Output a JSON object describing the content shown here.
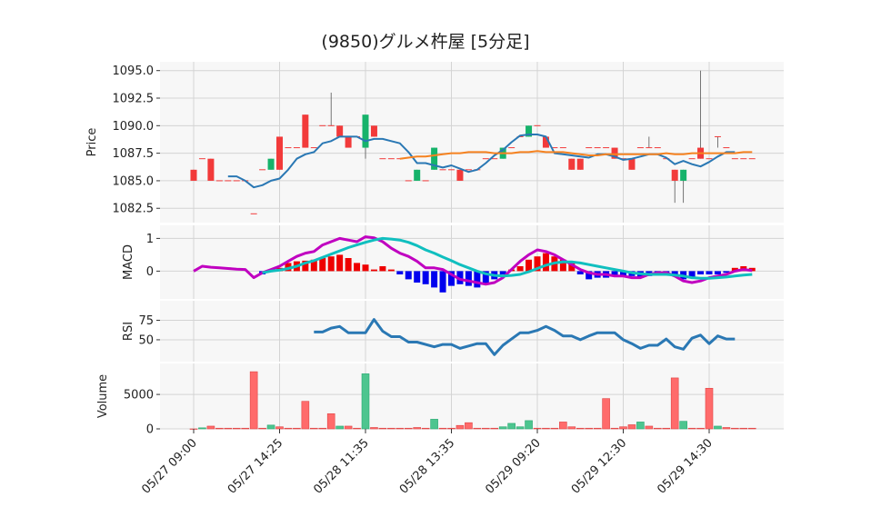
{
  "chart_data": {
    "type": "candlestick",
    "title": "(9850)グルメ杵屋 [5分足]",
    "x_labels": [
      "05/27 09:00",
      "05/27 14:25",
      "05/28 11:35",
      "05/28 13:35",
      "05/29 09:20",
      "05/29 12:30",
      "05/29 14:30"
    ],
    "x_label_index": [
      0,
      10,
      20,
      30,
      40,
      50,
      60
    ],
    "n_bars": 66,
    "colors": {
      "up": "#16b36b",
      "down": "#f23a3a",
      "ma_short": "#2a78b4",
      "ma_long": "#f58220",
      "macd": "#c000c0",
      "signal": "#10bfbf",
      "hist_up": "#ee0000",
      "hist_down": "#0000ee",
      "rsi": "#2a78b4",
      "vol_up": "#4dc58f",
      "vol_down": "#ff6b6b"
    },
    "price": {
      "ylabel": "Price",
      "ylim": [
        1081.2,
        1095.8
      ],
      "ticks": [
        "1082.5",
        "1085.0",
        "1087.5",
        "1090.0",
        "1092.5",
        "1095.0"
      ],
      "ohlc": [
        [
          1086,
          1086,
          1085,
          1085
        ],
        [
          1087,
          1087,
          1087,
          1087
        ],
        [
          1087,
          1087,
          1085,
          1085
        ],
        [
          1085,
          1085,
          1085,
          1085
        ],
        [
          1085,
          1085,
          1085,
          1085
        ],
        [
          1085,
          1085,
          1085,
          1085
        ],
        [
          1085,
          1085,
          1085,
          1085
        ],
        [
          1082,
          1082,
          1082,
          1082
        ],
        [
          1086,
          1086,
          1086,
          1086
        ],
        [
          1086,
          1087,
          1086,
          1087
        ],
        [
          1089,
          1089,
          1086,
          1086
        ],
        [
          1088,
          1088,
          1088,
          1088
        ],
        [
          1088,
          1088,
          1088,
          1088
        ],
        [
          1091,
          1091,
          1088,
          1088
        ],
        [
          1088,
          1088,
          1088,
          1088
        ],
        [
          1090,
          1090,
          1090,
          1090
        ],
        [
          1090,
          1093,
          1090,
          1090
        ],
        [
          1090,
          1090,
          1089,
          1089
        ],
        [
          1089,
          1089,
          1088,
          1088
        ],
        [
          1089,
          1089,
          1089,
          1089
        ],
        [
          1088,
          1091,
          1087,
          1091
        ],
        [
          1090,
          1090,
          1089,
          1089
        ],
        [
          1087,
          1087,
          1087,
          1087
        ],
        [
          1087,
          1087,
          1087,
          1087
        ],
        [
          1087,
          1087,
          1087,
          1087
        ],
        [
          1085,
          1085,
          1085,
          1085
        ],
        [
          1085,
          1086,
          1085,
          1086
        ],
        [
          1085,
          1085,
          1085,
          1085
        ],
        [
          1086,
          1088,
          1086,
          1088
        ],
        [
          1086,
          1086,
          1086,
          1086
        ],
        [
          1086,
          1086,
          1086,
          1086
        ],
        [
          1086,
          1086,
          1085,
          1085
        ],
        [
          1086,
          1086,
          1086,
          1086
        ],
        [
          1086,
          1086,
          1086,
          1086
        ],
        [
          1087,
          1087,
          1087,
          1087
        ],
        [
          1087,
          1087,
          1087,
          1087
        ],
        [
          1087,
          1088,
          1087,
          1088
        ],
        [
          1088,
          1088,
          1088,
          1088
        ],
        [
          1089,
          1089,
          1089,
          1089
        ],
        [
          1089,
          1090,
          1089,
          1090
        ],
        [
          1090,
          1090,
          1090,
          1090
        ],
        [
          1089,
          1089,
          1088,
          1088
        ],
        [
          1088,
          1088,
          1088,
          1088
        ],
        [
          1088,
          1088,
          1088,
          1088
        ],
        [
          1087,
          1087,
          1086,
          1086
        ],
        [
          1087,
          1087,
          1086,
          1086
        ],
        [
          1088,
          1088,
          1088,
          1088
        ],
        [
          1088,
          1088,
          1088,
          1088
        ],
        [
          1088,
          1088,
          1088,
          1088
        ],
        [
          1088,
          1088,
          1087,
          1087
        ],
        [
          1087,
          1087,
          1087,
          1087
        ],
        [
          1087,
          1087,
          1086,
          1086
        ],
        [
          1088,
          1088,
          1088,
          1088
        ],
        [
          1088,
          1089,
          1088,
          1088
        ],
        [
          1088,
          1088,
          1088,
          1088
        ],
        [
          1087,
          1087,
          1087,
          1087
        ],
        [
          1086,
          1086,
          1083,
          1085
        ],
        [
          1085,
          1086,
          1083,
          1086
        ],
        [
          1087,
          1087,
          1087,
          1087
        ],
        [
          1088,
          1095,
          1087,
          1087
        ],
        [
          1087,
          1087,
          1087,
          1087
        ],
        [
          1089,
          1089,
          1088,
          1089
        ],
        [
          1088,
          1088,
          1088,
          1088
        ],
        [
          1087,
          1087,
          1087,
          1087
        ],
        [
          1087,
          1087,
          1087,
          1087
        ],
        [
          1087,
          1087,
          1087,
          1087
        ]
      ],
      "ma_short": [
        null,
        null,
        null,
        null,
        1085.4,
        1085.4,
        1085,
        1084.4,
        1084.6,
        1085,
        1085.2,
        1086,
        1087,
        1087.4,
        1087.6,
        1088.4,
        1088.6,
        1089,
        1089,
        1089,
        1088.6,
        1088.8,
        1088.8,
        1088.6,
        1088.4,
        1087.6,
        1086.6,
        1086.6,
        1086.4,
        1086.2,
        1086.4,
        1086.1,
        1085.8,
        1086.0,
        1086.6,
        1087.3,
        1087.8,
        1088.5,
        1089.1,
        1089.2,
        1089.2,
        1089.0,
        1087.5,
        1087.4,
        1087.3,
        1087.2,
        1087.1,
        1087.4,
        1087.4,
        1087.2,
        1086.9,
        1087.0,
        1087.2,
        1087.4,
        1087.4,
        1087.1,
        1086.5,
        1086.8,
        1086.5,
        1086.3,
        1086.7,
        1087.2,
        1087.6,
        1087.6,
        null,
        null
      ],
      "ma_long": [
        null,
        null,
        null,
        null,
        null,
        null,
        null,
        null,
        null,
        null,
        null,
        null,
        null,
        null,
        null,
        null,
        null,
        null,
        null,
        null,
        null,
        null,
        null,
        null,
        1087.0,
        1087.1,
        1087.2,
        1087.2,
        1087.3,
        1087.4,
        1087.5,
        1087.5,
        1087.6,
        1087.6,
        1087.6,
        1087.5,
        1087.5,
        1087.5,
        1087.6,
        1087.6,
        1087.7,
        1087.6,
        1087.6,
        1087.6,
        1087.5,
        1087.4,
        1087.3,
        1087.3,
        1087.4,
        1087.4,
        1087.4,
        1087.4,
        1087.4,
        1087.4,
        1087.4,
        1087.5,
        1087.4,
        1087.4,
        1087.5,
        1087.5,
        1087.5,
        1087.5,
        1087.5,
        1087.5,
        1087.6,
        1087.6
      ]
    },
    "macd": {
      "ylabel": "MACD",
      "ylim": [
        -0.85,
        1.4
      ],
      "ticks": [
        "0",
        "1"
      ],
      "macd": [
        0,
        0.15,
        0.12,
        0.1,
        0.08,
        0.06,
        0.05,
        -0.2,
        -0.05,
        0.05,
        0.15,
        0.3,
        0.45,
        0.55,
        0.6,
        0.8,
        0.9,
        1.0,
        0.95,
        0.9,
        1.05,
        1.02,
        0.9,
        0.7,
        0.55,
        0.45,
        0.3,
        0.1,
        0.1,
        0.05,
        -0.1,
        -0.25,
        -0.3,
        -0.35,
        -0.4,
        -0.35,
        -0.2,
        0.05,
        0.3,
        0.5,
        0.65,
        0.6,
        0.5,
        0.35,
        0.2,
        0.05,
        -0.05,
        -0.1,
        -0.1,
        -0.15,
        -0.15,
        -0.2,
        -0.2,
        -0.1,
        -0.05,
        -0.05,
        -0.15,
        -0.3,
        -0.35,
        -0.3,
        -0.2,
        -0.15,
        -0.1,
        0,
        0.05,
        0.02
      ],
      "signal": [
        null,
        null,
        null,
        null,
        null,
        null,
        null,
        null,
        -0.05,
        0,
        0.03,
        0.08,
        0.15,
        0.25,
        0.32,
        0.42,
        0.52,
        0.62,
        0.72,
        0.8,
        0.88,
        0.95,
        1.0,
        0.98,
        0.95,
        0.88,
        0.78,
        0.65,
        0.55,
        0.43,
        0.32,
        0.2,
        0.1,
        0.0,
        -0.08,
        -0.13,
        -0.15,
        -0.13,
        -0.1,
        -0.02,
        0.08,
        0.18,
        0.25,
        0.28,
        0.28,
        0.25,
        0.2,
        0.15,
        0.1,
        0.05,
        0.0,
        -0.05,
        -0.08,
        -0.1,
        -0.1,
        -0.1,
        -0.12,
        -0.15,
        -0.2,
        -0.22,
        -0.22,
        -0.2,
        -0.18,
        -0.15,
        -0.12,
        -0.1
      ],
      "hist": [
        null,
        null,
        null,
        null,
        null,
        null,
        null,
        null,
        -0.1,
        0.02,
        0.1,
        0.25,
        0.3,
        0.32,
        0.35,
        0.4,
        0.45,
        0.5,
        0.4,
        0.25,
        0.2,
        0.05,
        0.15,
        0.05,
        -0.1,
        -0.25,
        -0.35,
        -0.4,
        -0.5,
        -0.65,
        -0.45,
        -0.4,
        -0.45,
        -0.5,
        -0.4,
        -0.25,
        -0.1,
        0.05,
        0.15,
        0.35,
        0.45,
        0.55,
        0.45,
        0.35,
        0.25,
        -0.1,
        -0.25,
        -0.2,
        -0.2,
        -0.15,
        -0.15,
        -0.15,
        -0.2,
        -0.15,
        -0.05,
        -0.05,
        -0.15,
        -0.25,
        -0.2,
        -0.1,
        -0.1,
        -0.1,
        -0.05,
        0.1,
        0.15,
        0.1
      ]
    },
    "rsi": {
      "ylabel": "RSI",
      "ylim": [
        22,
        100
      ],
      "ticks": [
        "50",
        "75"
      ],
      "values": [
        null,
        null,
        null,
        null,
        null,
        null,
        null,
        null,
        null,
        null,
        null,
        null,
        null,
        null,
        60,
        60,
        65,
        67,
        59,
        59,
        59,
        76,
        61,
        54,
        54,
        47,
        47,
        44,
        41,
        44,
        44,
        39,
        42,
        45,
        45,
        31,
        43,
        51,
        59,
        59,
        62,
        67,
        62,
        55,
        55,
        50,
        55,
        59,
        59,
        59,
        50,
        45,
        39,
        43,
        43,
        51,
        41,
        38,
        52,
        56,
        45,
        55,
        51,
        51,
        null,
        null
      ]
    },
    "volume": {
      "ylabel": "Volume",
      "ylim": [
        0,
        9500
      ],
      "ticks": [
        "0",
        "5000"
      ],
      "values": [
        0,
        150,
        400,
        100,
        100,
        100,
        100,
        8300,
        100,
        550,
        300,
        100,
        100,
        4000,
        100,
        100,
        2200,
        400,
        400,
        100,
        8000,
        200,
        100,
        100,
        100,
        100,
        200,
        100,
        1400,
        100,
        100,
        500,
        900,
        100,
        100,
        100,
        300,
        800,
        300,
        1200,
        100,
        100,
        100,
        1000,
        300,
        100,
        100,
        100,
        4400,
        100,
        300,
        600,
        1000,
        400,
        100,
        100,
        7400,
        1100,
        100,
        100,
        5900,
        400,
        200,
        100,
        100,
        100
      ],
      "up": [
        false,
        true,
        false,
        false,
        false,
        false,
        false,
        false,
        false,
        true,
        false,
        false,
        false,
        false,
        false,
        false,
        false,
        true,
        false,
        false,
        true,
        false,
        false,
        false,
        false,
        false,
        false,
        false,
        true,
        false,
        false,
        false,
        false,
        false,
        false,
        false,
        true,
        true,
        true,
        true,
        false,
        false,
        false,
        false,
        false,
        false,
        false,
        false,
        false,
        false,
        false,
        false,
        true,
        false,
        false,
        false,
        false,
        true,
        false,
        false,
        false,
        true,
        false,
        false,
        false,
        false
      ]
    }
  }
}
